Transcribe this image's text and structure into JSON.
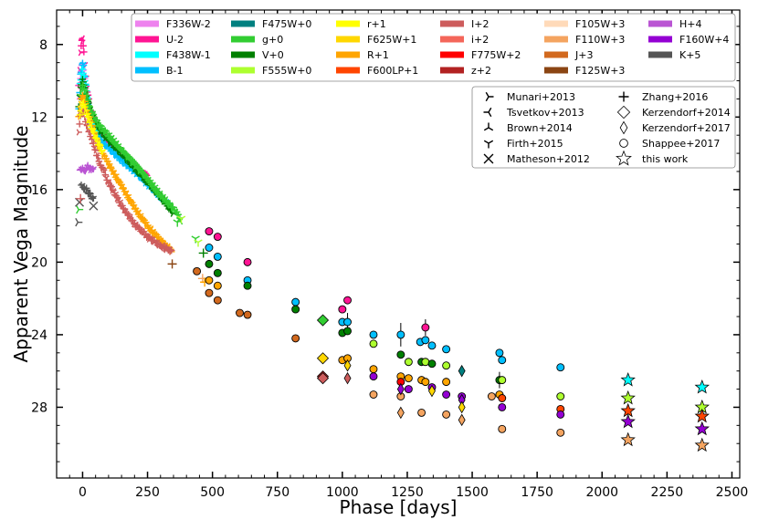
{
  "chart_data": {
    "type": "scatter",
    "xlabel": "Phase [days]",
    "ylabel": "Apparent Vega Magnitude",
    "xlim": [
      -100,
      2530
    ],
    "ylim": [
      31.9,
      6.1
    ],
    "y_inverted": true,
    "x_ticks": [
      0,
      250,
      500,
      750,
      1000,
      1250,
      1500,
      1750,
      2000,
      2250,
      2500
    ],
    "y_ticks": [
      8,
      12,
      16,
      20,
      24,
      28
    ],
    "filter_legend": [
      {
        "label": "F336W-2",
        "color": "#ee82ee"
      },
      {
        "label": "U-2",
        "color": "#ff1493"
      },
      {
        "label": "F438W-1",
        "color": "#00ffff"
      },
      {
        "label": "B-1",
        "color": "#00bfff"
      },
      {
        "label": "F475W+0",
        "color": "#008080"
      },
      {
        "label": "g+0",
        "color": "#32cd32"
      },
      {
        "label": "V+0",
        "color": "#008000"
      },
      {
        "label": "F555W+0",
        "color": "#adff2f"
      },
      {
        "label": "r+1",
        "color": "#ffff00"
      },
      {
        "label": "F625W+1",
        "color": "#ffd700"
      },
      {
        "label": "R+1",
        "color": "#ffa500"
      },
      {
        "label": "F600LP+1",
        "color": "#ff4500"
      },
      {
        "label": "I+2",
        "color": "#cd5c5c"
      },
      {
        "label": "i+2",
        "color": "#f4665a"
      },
      {
        "label": "F775W+2",
        "color": "#ff0000"
      },
      {
        "label": "z+2",
        "color": "#b22222"
      },
      {
        "label": "F105W+3",
        "color": "#ffdab9"
      },
      {
        "label": "F110W+3",
        "color": "#f4a460"
      },
      {
        "label": "J+3",
        "color": "#d2691e"
      },
      {
        "label": "F125W+3",
        "color": "#8b4513"
      },
      {
        "label": "H+4",
        "color": "#ba55d3"
      },
      {
        "label": "F160W+4",
        "color": "#9400d3"
      },
      {
        "label": "K+5",
        "color": "#555555"
      }
    ],
    "source_legend": [
      {
        "label": "Munari+2013",
        "marker": "tri_right"
      },
      {
        "label": "Tsvetkov+2013",
        "marker": "tri_left"
      },
      {
        "label": "Brown+2014",
        "marker": "tri_up"
      },
      {
        "label": "Firth+2015",
        "marker": "tri_down"
      },
      {
        "label": "Matheson+2012",
        "marker": "x"
      },
      {
        "label": "Zhang+2016",
        "marker": "plus"
      },
      {
        "label": "Kerzendorf+2014",
        "marker": "diamond"
      },
      {
        "label": "Kerzendorf+2017",
        "marker": "thin_diamond"
      },
      {
        "label": "Shappee+2017",
        "marker": "circle"
      },
      {
        "label": "this work",
        "marker": "star"
      }
    ],
    "early_curves": [
      {
        "filter": "U-2",
        "color": "#ff1493",
        "x": [
          -15,
          -8,
          -3,
          0,
          5,
          15,
          30,
          60,
          100,
          150,
          200,
          250
        ],
        "y": [
          10.2,
          8.5,
          7.8,
          7.6,
          8.4,
          10.3,
          11.6,
          12.6,
          13.3,
          14.1,
          14.7,
          15.3
        ]
      },
      {
        "filter": "F336W-2",
        "color": "#ee82ee",
        "x": [
          -15,
          -8,
          -3,
          0,
          5,
          15,
          30,
          50
        ],
        "y": [
          10.8,
          9.8,
          9.2,
          9.0,
          9.5,
          10.9,
          12.1,
          13.0
        ]
      },
      {
        "filter": "B-1",
        "color": "#00bfff",
        "x": [
          -15,
          -8,
          0,
          5,
          15,
          30,
          60,
          100,
          150,
          200,
          250,
          300,
          340
        ],
        "y": [
          11.5,
          9.7,
          9.0,
          9.2,
          10.8,
          12.2,
          13.1,
          13.7,
          14.4,
          15.0,
          15.7,
          16.4,
          17.0
        ]
      },
      {
        "filter": "F438W-1",
        "color": "#00ffff",
        "x": [
          -10,
          0,
          10,
          30,
          60
        ],
        "y": [
          10.2,
          9.4,
          10.0,
          12.0,
          12.9
        ]
      },
      {
        "filter": "V+0",
        "color": "#008000",
        "x": [
          -15,
          -8,
          0,
          5,
          15,
          30,
          60,
          100,
          150,
          200,
          250,
          300,
          350
        ],
        "y": [
          11.5,
          10.4,
          10.0,
          10.2,
          10.9,
          11.7,
          12.6,
          13.3,
          14.0,
          14.8,
          15.6,
          16.4,
          17.3
        ]
      },
      {
        "filter": "g+0",
        "color": "#32cd32",
        "x": [
          -10,
          0,
          10,
          30,
          60,
          100,
          150,
          200,
          250,
          300,
          360,
          380
        ],
        "y": [
          10.9,
          10.3,
          10.6,
          11.6,
          12.4,
          13.0,
          13.8,
          14.6,
          15.4,
          16.3,
          17.2,
          17.8
        ]
      },
      {
        "filter": "R+1",
        "color": "#ffa500",
        "x": [
          -15,
          -8,
          0,
          5,
          15,
          30,
          60,
          100,
          150,
          200,
          250,
          300,
          345
        ],
        "y": [
          12.0,
          11.2,
          10.8,
          11.0,
          11.6,
          12.2,
          13.5,
          14.6,
          15.8,
          17.0,
          18.0,
          18.8,
          19.4
        ]
      },
      {
        "filter": "I+2",
        "color": "#cd5c5c",
        "x": [
          -15,
          -8,
          0,
          5,
          15,
          30,
          60,
          100,
          150,
          200,
          250,
          300,
          345
        ],
        "y": [
          12.8,
          12.0,
          11.6,
          11.8,
          12.4,
          13.0,
          14.3,
          15.6,
          16.9,
          17.9,
          18.6,
          19.1,
          19.4
        ]
      },
      {
        "filter": "r+1",
        "color": "#ffff00",
        "x": [
          -10,
          0,
          15,
          40,
          80
        ],
        "y": [
          11.8,
          11.1,
          11.8,
          12.8,
          14.0
        ]
      },
      {
        "filter": "H+4",
        "color": "#ba55d3",
        "x": [
          -10,
          0,
          10,
          20,
          30,
          45
        ],
        "y": [
          15.0,
          14.8,
          14.9,
          14.7,
          15.0,
          14.9
        ]
      },
      {
        "filter": "K+5",
        "color": "#555555",
        "x": [
          -5,
          5,
          15,
          30,
          45
        ],
        "y": [
          15.8,
          15.9,
          16.0,
          16.3,
          16.6
        ]
      }
    ],
    "early_markers": [
      {
        "x": -18,
        "y": 17.8,
        "color": "#555555",
        "marker": "tri_right"
      },
      {
        "x": -15,
        "y": 17.1,
        "color": "#32cd32",
        "marker": "tri_right"
      },
      {
        "x": -12,
        "y": 16.7,
        "color": "#555555",
        "marker": "x"
      },
      {
        "x": -8,
        "y": 16.5,
        "color": "#cd5c5c",
        "marker": "plus"
      },
      {
        "x": 42,
        "y": 16.9,
        "color": "#555555",
        "marker": "x"
      },
      {
        "x": 345,
        "y": 20.1,
        "color": "#8b4513",
        "marker": "plus"
      },
      {
        "x": 365,
        "y": 17.8,
        "color": "#32cd32",
        "marker": "tri_down"
      },
      {
        "x": 380,
        "y": 17.6,
        "color": "#adff2f",
        "marker": "tri_down"
      },
      {
        "x": 435,
        "y": 18.7,
        "color": "#32cd32",
        "marker": "tri_down"
      },
      {
        "x": 445,
        "y": 18.9,
        "color": "#adff2f",
        "marker": "tri_down"
      },
      {
        "x": 465,
        "y": 19.5,
        "color": "#008000",
        "marker": "plus"
      },
      {
        "x": 462,
        "y": 20.9,
        "color": "#f4a460",
        "marker": "plus"
      },
      {
        "x": 470,
        "y": 21.1,
        "color": "#ffa500",
        "marker": "plus"
      }
    ],
    "late_points": [
      {
        "x": 440,
        "y": 20.5,
        "color": "#d2691e",
        "marker": "circle"
      },
      {
        "x": 487,
        "y": 18.3,
        "color": "#ff1493",
        "marker": "circle"
      },
      {
        "x": 487,
        "y": 19.2,
        "color": "#00bfff",
        "marker": "circle"
      },
      {
        "x": 487,
        "y": 20.1,
        "color": "#008000",
        "marker": "circle"
      },
      {
        "x": 487,
        "y": 21.0,
        "color": "#ffa500",
        "marker": "circle"
      },
      {
        "x": 487,
        "y": 21.7,
        "color": "#d2691e",
        "marker": "circle"
      },
      {
        "x": 520,
        "y": 18.6,
        "color": "#ff1493",
        "marker": "circle"
      },
      {
        "x": 520,
        "y": 19.7,
        "color": "#00bfff",
        "marker": "circle"
      },
      {
        "x": 520,
        "y": 20.6,
        "color": "#008000",
        "marker": "circle"
      },
      {
        "x": 520,
        "y": 21.3,
        "color": "#ffa500",
        "marker": "circle"
      },
      {
        "x": 520,
        "y": 22.1,
        "color": "#d2691e",
        "marker": "circle"
      },
      {
        "x": 605,
        "y": 22.8,
        "color": "#d2691e",
        "marker": "circle"
      },
      {
        "x": 635,
        "y": 20.0,
        "color": "#ff1493",
        "marker": "circle"
      },
      {
        "x": 635,
        "y": 21.0,
        "color": "#00bfff",
        "marker": "circle"
      },
      {
        "x": 635,
        "y": 21.3,
        "color": "#008000",
        "marker": "circle"
      },
      {
        "x": 635,
        "y": 22.9,
        "color": "#d2691e",
        "marker": "circle"
      },
      {
        "x": 820,
        "y": 22.2,
        "color": "#00bfff",
        "marker": "circle"
      },
      {
        "x": 820,
        "y": 22.6,
        "color": "#008000",
        "marker": "circle"
      },
      {
        "x": 820,
        "y": 24.2,
        "color": "#d2691e",
        "marker": "circle"
      },
      {
        "x": 1000,
        "y": 22.6,
        "color": "#ff1493",
        "marker": "circle"
      },
      {
        "x": 1000,
        "y": 23.3,
        "color": "#00bfff",
        "marker": "circle"
      },
      {
        "x": 1000,
        "y": 23.9,
        "color": "#008000",
        "marker": "circle"
      },
      {
        "x": 1000,
        "y": 25.4,
        "color": "#ffa500",
        "marker": "circle"
      },
      {
        "x": 1020,
        "y": 22.1,
        "color": "#ff1493",
        "marker": "circle"
      },
      {
        "x": 1020,
        "y": 23.3,
        "color": "#00bfff",
        "marker": "circle"
      },
      {
        "x": 1020,
        "y": 23.8,
        "color": "#008000",
        "marker": "circle"
      },
      {
        "x": 1020,
        "y": 25.3,
        "color": "#ffa500",
        "marker": "circle"
      },
      {
        "x": 1120,
        "y": 24.0,
        "color": "#00bfff",
        "marker": "circle"
      },
      {
        "x": 1120,
        "y": 24.5,
        "color": "#adff2f",
        "marker": "circle"
      },
      {
        "x": 1120,
        "y": 25.9,
        "color": "#ffa500",
        "marker": "circle"
      },
      {
        "x": 1120,
        "y": 26.3,
        "color": "#9400d3",
        "marker": "circle"
      },
      {
        "x": 1120,
        "y": 27.3,
        "color": "#f4a460",
        "marker": "circle"
      },
      {
        "x": 1225,
        "y": 24.0,
        "color": "#00bfff",
        "marker": "circle"
      },
      {
        "x": 1225,
        "y": 25.1,
        "color": "#008000",
        "marker": "circle"
      },
      {
        "x": 1225,
        "y": 26.3,
        "color": "#ffa500",
        "marker": "circle"
      },
      {
        "x": 1225,
        "y": 26.6,
        "color": "#ff0000",
        "marker": "circle"
      },
      {
        "x": 1225,
        "y": 27.4,
        "color": "#f4a460",
        "marker": "circle"
      },
      {
        "x": 1255,
        "y": 25.5,
        "color": "#adff2f",
        "marker": "circle"
      },
      {
        "x": 1255,
        "y": 26.4,
        "color": "#ffa500",
        "marker": "circle"
      },
      {
        "x": 1255,
        "y": 27.0,
        "color": "#9400d3",
        "marker": "circle"
      },
      {
        "x": 1300,
        "y": 24.4,
        "color": "#00bfff",
        "marker": "circle"
      },
      {
        "x": 1305,
        "y": 25.5,
        "color": "#008000",
        "marker": "circle"
      },
      {
        "x": 1305,
        "y": 26.5,
        "color": "#ffa500",
        "marker": "circle"
      },
      {
        "x": 1305,
        "y": 28.3,
        "color": "#f4a460",
        "marker": "circle"
      },
      {
        "x": 1320,
        "y": 23.6,
        "color": "#ff1493",
        "marker": "circle"
      },
      {
        "x": 1320,
        "y": 24.3,
        "color": "#00bfff",
        "marker": "circle"
      },
      {
        "x": 1320,
        "y": 25.5,
        "color": "#adff2f",
        "marker": "circle"
      },
      {
        "x": 1320,
        "y": 26.6,
        "color": "#ffa500",
        "marker": "circle"
      },
      {
        "x": 1345,
        "y": 24.6,
        "color": "#00bfff",
        "marker": "circle"
      },
      {
        "x": 1345,
        "y": 25.6,
        "color": "#008000",
        "marker": "circle"
      },
      {
        "x": 1345,
        "y": 26.9,
        "color": "#9400d3",
        "marker": "circle"
      },
      {
        "x": 1400,
        "y": 24.8,
        "color": "#00bfff",
        "marker": "circle"
      },
      {
        "x": 1400,
        "y": 25.7,
        "color": "#adff2f",
        "marker": "circle"
      },
      {
        "x": 1400,
        "y": 26.6,
        "color": "#ffa500",
        "marker": "circle"
      },
      {
        "x": 1400,
        "y": 27.3,
        "color": "#9400d3",
        "marker": "circle"
      },
      {
        "x": 1400,
        "y": 28.4,
        "color": "#f4a460",
        "marker": "circle"
      },
      {
        "x": 1460,
        "y": 27.4,
        "color": "#9400d3",
        "marker": "circle"
      },
      {
        "x": 1575,
        "y": 27.4,
        "color": "#f4a460",
        "marker": "circle"
      },
      {
        "x": 1605,
        "y": 25.0,
        "color": "#00bfff",
        "marker": "circle"
      },
      {
        "x": 1605,
        "y": 26.5,
        "color": "#008000",
        "marker": "circle"
      },
      {
        "x": 1605,
        "y": 27.3,
        "color": "#ffa500",
        "marker": "circle"
      },
      {
        "x": 1615,
        "y": 25.4,
        "color": "#00bfff",
        "marker": "circle"
      },
      {
        "x": 1615,
        "y": 26.5,
        "color": "#adff2f",
        "marker": "circle"
      },
      {
        "x": 1615,
        "y": 27.5,
        "color": "#ff4500",
        "marker": "circle"
      },
      {
        "x": 1615,
        "y": 28.0,
        "color": "#9400d3",
        "marker": "circle"
      },
      {
        "x": 1615,
        "y": 29.2,
        "color": "#f4a460",
        "marker": "circle"
      },
      {
        "x": 1840,
        "y": 25.8,
        "color": "#00bfff",
        "marker": "circle"
      },
      {
        "x": 1840,
        "y": 27.4,
        "color": "#adff2f",
        "marker": "circle"
      },
      {
        "x": 1840,
        "y": 28.1,
        "color": "#ff4500",
        "marker": "circle"
      },
      {
        "x": 1840,
        "y": 28.4,
        "color": "#9400d3",
        "marker": "circle"
      },
      {
        "x": 1840,
        "y": 29.4,
        "color": "#f4a460",
        "marker": "circle"
      },
      {
        "x": 925,
        "y": 23.2,
        "color": "#32cd32",
        "marker": "diamond"
      },
      {
        "x": 925,
        "y": 25.3,
        "color": "#ffd700",
        "marker": "diamond"
      },
      {
        "x": 925,
        "y": 26.3,
        "color": "#b22222",
        "marker": "diamond"
      },
      {
        "x": 925,
        "y": 26.4,
        "color": "#cd5c5c",
        "marker": "diamond"
      },
      {
        "x": 1020,
        "y": 25.7,
        "color": "#ffd700",
        "marker": "thin_diamond"
      },
      {
        "x": 1020,
        "y": 26.4,
        "color": "#cd5c5c",
        "marker": "thin_diamond"
      },
      {
        "x": 1225,
        "y": 27.0,
        "color": "#9400d3",
        "marker": "thin_diamond"
      },
      {
        "x": 1225,
        "y": 28.3,
        "color": "#f4a460",
        "marker": "thin_diamond"
      },
      {
        "x": 1345,
        "y": 27.1,
        "color": "#ffd700",
        "marker": "thin_diamond"
      },
      {
        "x": 1460,
        "y": 26.0,
        "color": "#008080",
        "marker": "thin_diamond"
      },
      {
        "x": 1460,
        "y": 27.6,
        "color": "#9400d3",
        "marker": "thin_diamond"
      },
      {
        "x": 1460,
        "y": 28.0,
        "color": "#ffd700",
        "marker": "thin_diamond"
      },
      {
        "x": 1460,
        "y": 28.7,
        "color": "#f4a460",
        "marker": "thin_diamond"
      },
      {
        "x": 2100,
        "y": 26.5,
        "color": "#00ffff",
        "marker": "star"
      },
      {
        "x": 2100,
        "y": 27.5,
        "color": "#adff2f",
        "marker": "star"
      },
      {
        "x": 2100,
        "y": 28.2,
        "color": "#ff4500",
        "marker": "star"
      },
      {
        "x": 2100,
        "y": 28.8,
        "color": "#9400d3",
        "marker": "star"
      },
      {
        "x": 2100,
        "y": 29.8,
        "color": "#f4a460",
        "marker": "star"
      },
      {
        "x": 2385,
        "y": 26.9,
        "color": "#00ffff",
        "marker": "star"
      },
      {
        "x": 2385,
        "y": 28.0,
        "color": "#adff2f",
        "marker": "star"
      },
      {
        "x": 2385,
        "y": 28.5,
        "color": "#ff4500",
        "marker": "star"
      },
      {
        "x": 2385,
        "y": 29.2,
        "color": "#9400d3",
        "marker": "star"
      },
      {
        "x": 2385,
        "y": 30.1,
        "color": "#f4a460",
        "marker": "star"
      }
    ]
  }
}
